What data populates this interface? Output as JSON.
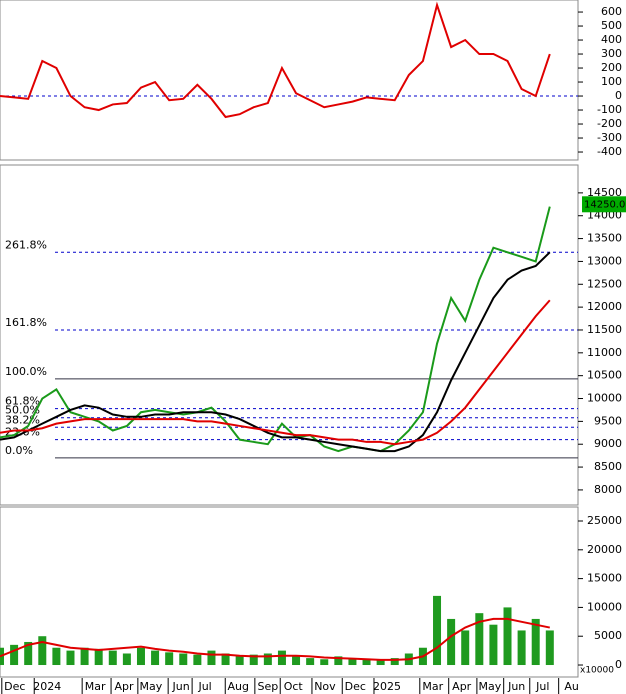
{
  "chart_data": [
    {
      "type": "line",
      "ylim": [
        -457,
        686
      ],
      "yticks": [
        -400,
        -300,
        -200,
        -100,
        0,
        100,
        200,
        300,
        400,
        500,
        600
      ],
      "xlim": [
        0,
        82
      ],
      "zero_line": 0,
      "x": [
        0,
        2,
        4,
        6,
        8,
        10,
        12,
        14,
        16,
        18,
        20,
        22,
        24,
        26,
        28,
        30,
        32,
        34,
        36,
        38,
        40,
        42,
        44,
        46,
        48,
        50,
        52,
        54,
        56,
        58,
        60,
        62,
        64,
        66,
        68,
        70,
        72,
        74,
        76,
        78
      ],
      "series": [
        {
          "color": "#e00000",
          "values": [
            0,
            -10,
            -20,
            250,
            200,
            0,
            -80,
            -100,
            -60,
            -50,
            60,
            100,
            -30,
            -20,
            80,
            -20,
            -150,
            -130,
            -80,
            -50,
            200,
            20,
            -30,
            -80,
            -60,
            -40,
            -10,
            -20,
            -30,
            150,
            250,
            650,
            350,
            400,
            300,
            300,
            250,
            50,
            0,
            300
          ]
        }
      ]
    },
    {
      "type": "line",
      "ylim": [
        7670,
        15110
      ],
      "yticks": [
        8000,
        8500,
        9000,
        9500,
        10000,
        10500,
        11000,
        11500,
        12000,
        12500,
        13000,
        13500,
        14000,
        14500
      ],
      "xlim": [
        0,
        82
      ],
      "x": [
        0,
        2,
        4,
        6,
        8,
        10,
        12,
        14,
        16,
        18,
        20,
        22,
        24,
        26,
        28,
        30,
        32,
        34,
        36,
        38,
        40,
        42,
        44,
        46,
        48,
        50,
        52,
        54,
        56,
        58,
        60,
        62,
        64,
        66,
        68,
        70,
        72,
        74,
        76,
        78
      ],
      "series": [
        {
          "color": "#1a9a1a",
          "values": [
            9150,
            9200,
            9400,
            10000,
            10200,
            9700,
            9600,
            9500,
            9300,
            9400,
            9700,
            9750,
            9700,
            9650,
            9700,
            9800,
            9500,
            9100,
            9050,
            9000,
            9450,
            9150,
            9200,
            8950,
            8850,
            8950,
            8900,
            8850,
            9000,
            9300,
            9700,
            11200,
            12200,
            11700,
            12600,
            13300,
            13200,
            13100,
            13000,
            14200
          ]
        },
        {
          "color": "#000000",
          "values": [
            9100,
            9150,
            9300,
            9450,
            9600,
            9750,
            9850,
            9800,
            9650,
            9600,
            9600,
            9650,
            9650,
            9700,
            9700,
            9700,
            9650,
            9550,
            9400,
            9250,
            9150,
            9150,
            9100,
            9050,
            9000,
            8950,
            8900,
            8850,
            8850,
            8950,
            9200,
            9700,
            10400,
            11000,
            11600,
            12200,
            12600,
            12800,
            12900,
            13200
          ]
        },
        {
          "color": "#e00000",
          "values": [
            9250,
            9300,
            9300,
            9350,
            9450,
            9500,
            9550,
            9550,
            9550,
            9550,
            9550,
            9550,
            9550,
            9550,
            9500,
            9500,
            9450,
            9400,
            9350,
            9300,
            9250,
            9200,
            9200,
            9150,
            9100,
            9100,
            9050,
            9050,
            9000,
            9050,
            9100,
            9250,
            9500,
            9800,
            10200,
            10600,
            11000,
            11400,
            11800,
            12150
          ]
        }
      ],
      "fib_levels": [
        {
          "value": 13200,
          "label": "261.8%"
        },
        {
          "value": 11500,
          "label": "161.8%"
        },
        {
          "value": 10430,
          "label": "100.0%"
        },
        {
          "value": 9780,
          "label": "61.8%"
        },
        {
          "value": 9580,
          "label": "50.0%"
        },
        {
          "value": 9370,
          "label": "38.2%"
        },
        {
          "value": 9100,
          "label": "23.6%"
        },
        {
          "value": 8700,
          "label": "0.0%"
        }
      ],
      "last_price": {
        "value": 14250,
        "label": "14250.00"
      }
    },
    {
      "type": "bar",
      "ylim": [
        -2080,
        27430
      ],
      "yticks": [
        0,
        5000,
        10000,
        15000,
        20000,
        25000
      ],
      "xlim": [
        0,
        82
      ],
      "unit_label": "x10000",
      "x": [
        0,
        2,
        4,
        6,
        8,
        10,
        12,
        14,
        16,
        18,
        20,
        22,
        24,
        26,
        28,
        30,
        32,
        34,
        36,
        38,
        40,
        42,
        44,
        46,
        48,
        50,
        52,
        54,
        56,
        58,
        60,
        62,
        64,
        66,
        68,
        70,
        72,
        74,
        76,
        78
      ],
      "series": [
        {
          "kind": "bar",
          "color": "#1f9a1f",
          "values": [
            3000,
            3500,
            4000,
            5000,
            3000,
            2500,
            3000,
            2800,
            2500,
            2000,
            3000,
            2500,
            2200,
            2000,
            1800,
            2500,
            2000,
            1500,
            1800,
            2000,
            2500,
            1500,
            1200,
            1000,
            1500,
            1200,
            1000,
            1000,
            1200,
            2000,
            3000,
            12000,
            8000,
            6000,
            9000,
            7000,
            10000,
            6000,
            8000,
            6000
          ]
        },
        {
          "kind": "line",
          "color": "#e00000",
          "values": [
            1500,
            2500,
            3500,
            4000,
            3500,
            3000,
            2800,
            2600,
            2800,
            3000,
            3200,
            2800,
            2500,
            2300,
            2000,
            1800,
            1800,
            1600,
            1500,
            1500,
            1600,
            1600,
            1500,
            1300,
            1200,
            1100,
            1000,
            900,
            900,
            1000,
            1500,
            3000,
            5000,
            6500,
            7500,
            8000,
            8000,
            7500,
            7000,
            6500
          ]
        }
      ],
      "xticks": [
        {
          "value": 2.1,
          "label": "Dec"
        },
        {
          "value": 6.7,
          "label": "2024"
        },
        {
          "value": 13.5,
          "label": "Mar"
        },
        {
          "value": 17.6,
          "label": "Apr"
        },
        {
          "value": 21.4,
          "label": "May"
        },
        {
          "value": 25.7,
          "label": "Jun"
        },
        {
          "value": 29.1,
          "label": "Jul"
        },
        {
          "value": 33.8,
          "label": "Aug"
        },
        {
          "value": 38,
          "label": "Sep"
        },
        {
          "value": 41.6,
          "label": "Oct"
        },
        {
          "value": 46.1,
          "label": "Nov"
        },
        {
          "value": 50.4,
          "label": "Dec"
        },
        {
          "value": 54.9,
          "label": "2025"
        },
        {
          "value": 61.4,
          "label": "Mar"
        },
        {
          "value": 65.5,
          "label": "Apr"
        },
        {
          "value": 69.5,
          "label": "May"
        },
        {
          "value": 73.3,
          "label": "Jun"
        },
        {
          "value": 77,
          "label": "Jul"
        },
        {
          "value": 81.1,
          "label": "Au"
        }
      ]
    }
  ]
}
